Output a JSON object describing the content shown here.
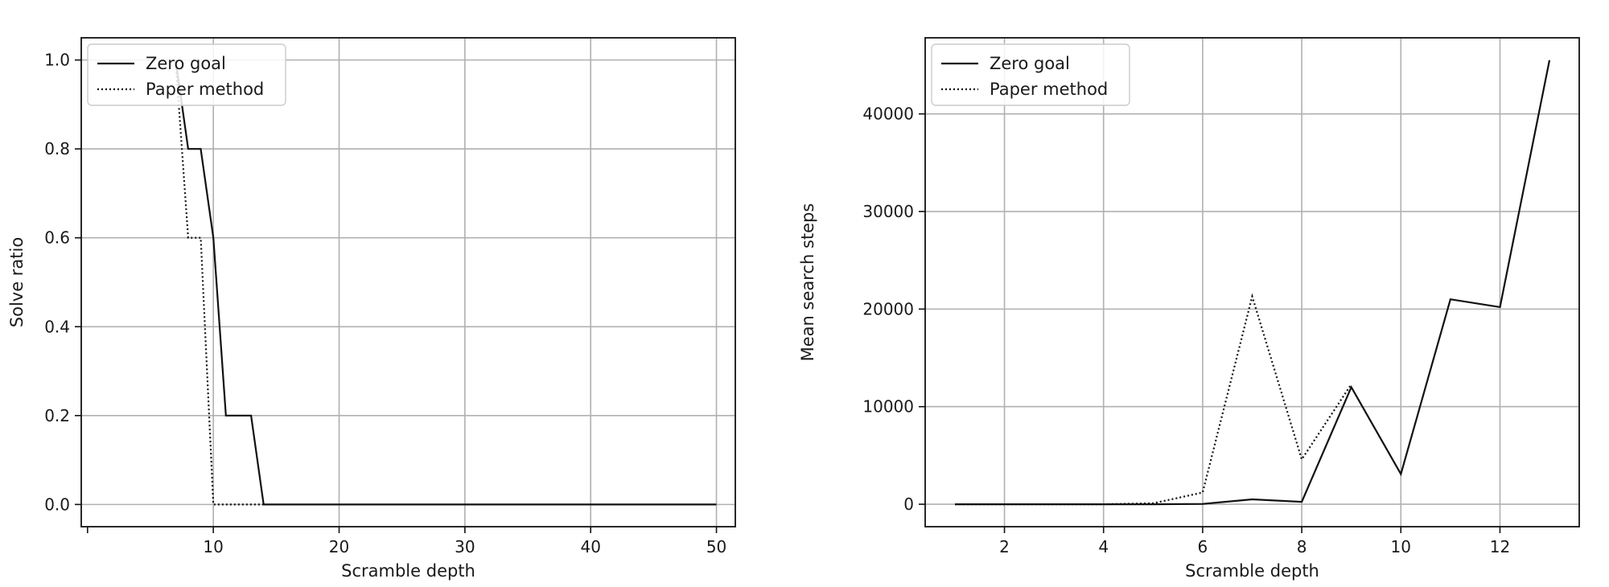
{
  "chart_data": [
    {
      "type": "line",
      "xlabel": "Scramble depth",
      "ylabel": "Solve ratio",
      "xlim": [
        -0.5,
        51.5
      ],
      "ylim": [
        -0.05,
        1.05
      ],
      "xticks": [
        10,
        20,
        30,
        40,
        50
      ],
      "yticks": [
        0.0,
        0.2,
        0.4,
        0.6,
        0.8,
        1.0
      ],
      "grid": true,
      "legend_position": "top-left",
      "series": [
        {
          "name": "Zero goal",
          "style": "solid",
          "x": [
            7,
            8,
            9,
            10,
            11,
            12,
            13,
            14,
            15,
            20,
            25,
            30,
            35,
            40,
            45,
            50
          ],
          "y": [
            1.0,
            0.8,
            0.8,
            0.6,
            0.2,
            0.2,
            0.2,
            0.0,
            0.0,
            0.0,
            0.0,
            0.0,
            0.0,
            0.0,
            0.0,
            0.0
          ]
        },
        {
          "name": "Paper method",
          "style": "dotted",
          "x": [
            7,
            8,
            9,
            10,
            11,
            12,
            13,
            14
          ],
          "y": [
            1.0,
            0.6,
            0.6,
            0.0,
            0.0,
            0.0,
            0.0,
            0.0
          ]
        }
      ]
    },
    {
      "type": "line",
      "xlabel": "Scramble depth",
      "ylabel": "Mean search steps",
      "xlim": [
        0.4,
        13.6
      ],
      "ylim": [
        -2300,
        47800
      ],
      "xticks": [
        2,
        4,
        6,
        8,
        10,
        12
      ],
      "yticks": [
        0,
        10000,
        20000,
        30000,
        40000
      ],
      "grid": true,
      "legend_position": "top-left",
      "series": [
        {
          "name": "Zero goal",
          "style": "solid",
          "x": [
            1,
            2,
            3,
            4,
            5,
            6,
            7,
            8,
            9,
            10,
            11,
            12,
            13
          ],
          "y": [
            0,
            0,
            0,
            0,
            0,
            30,
            500,
            250,
            12000,
            3100,
            21000,
            20200,
            45500
          ]
        },
        {
          "name": "Paper method",
          "style": "dotted",
          "x": [
            1,
            2,
            3,
            4,
            5,
            6,
            7,
            8,
            9
          ],
          "y": [
            0,
            0,
            0,
            0,
            100,
            1200,
            21300,
            4600,
            12300
          ]
        }
      ]
    }
  ]
}
